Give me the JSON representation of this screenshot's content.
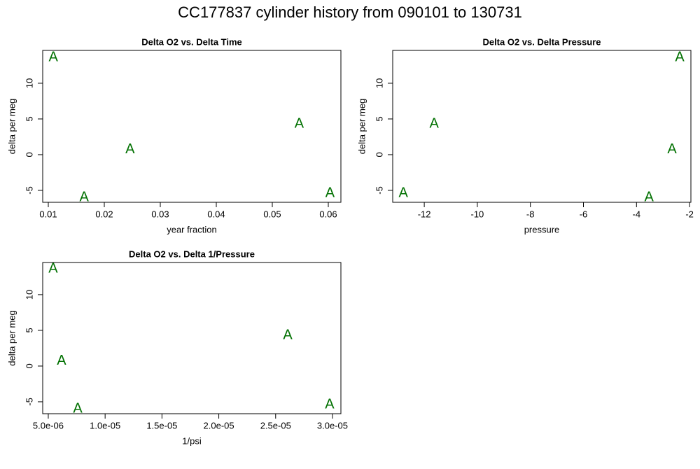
{
  "title": "CC177837   cylinder history from  090101  to  130731",
  "chart_data": [
    {
      "type": "scatter",
      "title": "Delta O2 vs. Delta Time",
      "x_label": "year fraction",
      "y_label": "delta per meg",
      "marker": "A",
      "color": "#007000",
      "x": [
        0.0109,
        0.0164,
        0.0246,
        0.0548,
        0.0603
      ],
      "values": [
        13.7,
        -5.9,
        0.8,
        4.4,
        -5.3
      ],
      "xlim": [
        0.009,
        0.06225
      ],
      "ylim": [
        -6.67,
        14.6
      ],
      "xticks": [
        0.01,
        0.02,
        0.03,
        0.04,
        0.05,
        0.06
      ],
      "yticks": [
        -5,
        0,
        5,
        10
      ]
    },
    {
      "type": "scatter",
      "title": "Delta O2 vs. Delta Pressure",
      "x_label": "pressure",
      "y_label": "delta per meg",
      "marker": "A",
      "color": "#007000",
      "x": [
        -2.37,
        -3.53,
        -2.66,
        -11.63,
        -12.79
      ],
      "values": [
        13.7,
        -5.9,
        0.8,
        4.4,
        -5.3
      ],
      "xlim": [
        -13.19,
        -1.95
      ],
      "ylim": [
        -6.67,
        14.6
      ],
      "xticks": [
        -12,
        -10,
        -8,
        -6,
        -4,
        -2
      ],
      "yticks": [
        -5,
        0,
        5,
        10
      ]
    },
    {
      "type": "scatter",
      "title": "Delta O2 vs. Delta 1/Pressure",
      "x_label": "1/psi",
      "y_label": "delta per meg",
      "marker": "A",
      "color": "#007000",
      "x": [
        5.43e-06,
        7.59e-06,
        6.17e-06,
        2.606e-05,
        2.975e-05
      ],
      "values": [
        13.7,
        -5.9,
        0.8,
        4.4,
        -5.3
      ],
      "xlim": [
        4.51e-06,
        3.074e-05
      ],
      "ylim": [
        -6.67,
        14.5
      ],
      "xticks": [
        {
          "value": 5e-06,
          "label": "5.0e-06"
        },
        {
          "value": 1e-05,
          "label": "1.0e-05"
        },
        {
          "value": 1.5e-05,
          "label": "1.5e-05"
        },
        {
          "value": 2e-05,
          "label": "2.0e-05"
        },
        {
          "value": 2.5e-05,
          "label": "2.5e-05"
        },
        {
          "value": 3e-05,
          "label": "3.0e-05"
        }
      ],
      "yticks": [
        -5,
        0,
        5,
        10
      ]
    }
  ]
}
